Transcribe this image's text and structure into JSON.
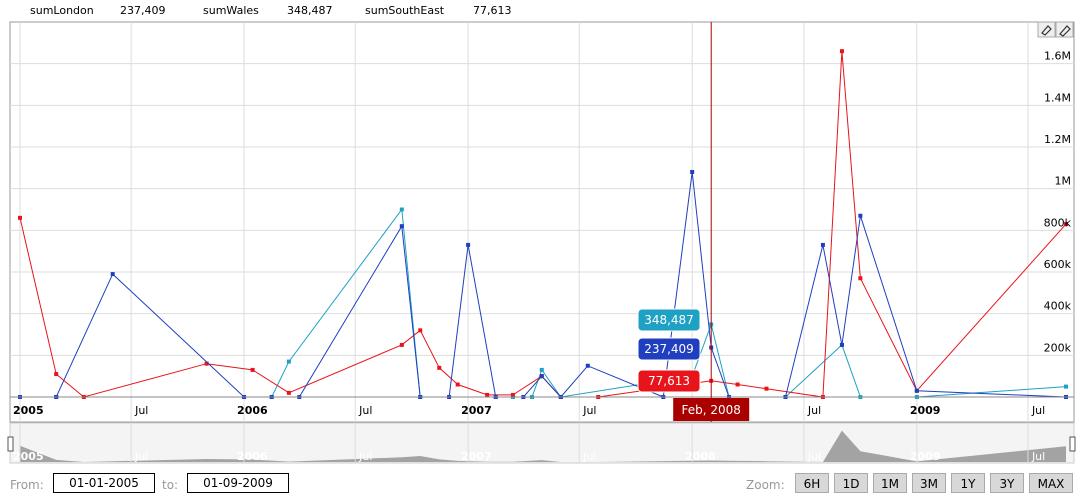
{
  "legend": [
    {
      "name": "sumLondon",
      "value": "237,409"
    },
    {
      "name": "sumWales",
      "value": "348,487"
    },
    {
      "name": "sumSouthEast",
      "value": "77,613"
    }
  ],
  "controls": {
    "from_label": "From:",
    "from_value": "01-01-2005",
    "to_label": "to:",
    "to_value": "01-09-2009",
    "zoom_label": "Zoom:",
    "zoom_buttons": [
      "6H",
      "1D",
      "1M",
      "3M",
      "1Y",
      "3Y",
      "MAX"
    ]
  },
  "colors": {
    "london": "#1f3fbf",
    "wales": "#1ea1c3",
    "southeast": "#e8141b",
    "cursor": "#aa0000"
  },
  "icons": [
    "eraser-icon",
    "pencil-icon"
  ],
  "chart_data": {
    "type": "line",
    "x_ticks": [
      {
        "x": "2005-01-01",
        "label": "2005",
        "major": true
      },
      {
        "x": "2005-07-01",
        "label": "Jul",
        "major": false
      },
      {
        "x": "2006-01-01",
        "label": "2006",
        "major": true
      },
      {
        "x": "2006-07-01",
        "label": "Jul",
        "major": false
      },
      {
        "x": "2007-01-01",
        "label": "2007",
        "major": true
      },
      {
        "x": "2007-07-01",
        "label": "Jul",
        "major": false
      },
      {
        "x": "2008-01-01",
        "label": "2008",
        "major": true
      },
      {
        "x": "2008-07-01",
        "label": "Jul",
        "major": false
      },
      {
        "x": "2009-01-01",
        "label": "2009",
        "major": true
      },
      {
        "x": "2009-07-01",
        "label": "Jul",
        "major": false
      }
    ],
    "y_ticks": [
      {
        "value": 200000,
        "label": "200k"
      },
      {
        "value": 400000,
        "label": "400k"
      },
      {
        "value": 600000,
        "label": "600k"
      },
      {
        "value": 800000,
        "label": "800k"
      },
      {
        "value": 1000000,
        "label": "1M"
      },
      {
        "value": 1200000,
        "label": "1.2M"
      },
      {
        "value": 1400000,
        "label": "1.4M"
      },
      {
        "value": 1600000,
        "label": "1.6M"
      }
    ],
    "xlim": [
      "2005-01-01",
      "2009-09-01"
    ],
    "ylim": [
      0,
      1800000
    ],
    "grid": true,
    "cursor": {
      "x": "2008-02-01",
      "label": "Feb, 2008"
    },
    "series": [
      {
        "name": "sumLondon",
        "points": [
          [
            "2005-01-01",
            0
          ],
          [
            "2005-03-01",
            0
          ],
          [
            "2005-06-01",
            590000
          ],
          [
            "2006-01-01",
            0
          ],
          [
            "2006-02-15",
            0
          ],
          [
            "2006-04-01",
            0
          ],
          [
            "2006-09-15",
            820000
          ],
          [
            "2006-10-15",
            0
          ],
          [
            "2006-12-01",
            0
          ],
          [
            "2007-01-01",
            730000
          ],
          [
            "2007-02-15",
            0
          ],
          [
            "2007-04-01",
            0
          ],
          [
            "2007-05-01",
            100000
          ],
          [
            "2007-06-01",
            0
          ],
          [
            "2007-07-15",
            150000
          ],
          [
            "2007-11-15",
            0
          ],
          [
            "2008-01-01",
            1080000
          ],
          [
            "2008-02-01",
            237409
          ],
          [
            "2008-03-01",
            0
          ],
          [
            "2008-06-01",
            0
          ],
          [
            "2008-08-01",
            730000
          ],
          [
            "2008-09-01",
            250000
          ],
          [
            "2008-10-01",
            870000
          ],
          [
            "2009-01-01",
            30000
          ],
          [
            "2009-09-01",
            0
          ]
        ]
      },
      {
        "name": "sumWales",
        "points": [
          [
            "2005-01-01",
            0
          ],
          [
            "2005-03-01",
            0
          ],
          [
            "2006-01-01",
            0
          ],
          [
            "2006-02-15",
            0
          ],
          [
            "2006-03-15",
            170000
          ],
          [
            "2006-09-15",
            900000
          ],
          [
            "2006-10-15",
            0
          ],
          [
            "2007-02-15",
            0
          ],
          [
            "2007-03-15",
            0
          ],
          [
            "2007-04-15",
            0
          ],
          [
            "2007-05-01",
            130000
          ],
          [
            "2007-06-01",
            0
          ],
          [
            "2008-01-01",
            100000
          ],
          [
            "2008-02-01",
            348487
          ],
          [
            "2008-03-01",
            0
          ],
          [
            "2008-06-01",
            0
          ],
          [
            "2008-09-01",
            250000
          ],
          [
            "2008-10-01",
            0
          ],
          [
            "2009-01-01",
            0
          ],
          [
            "2009-09-01",
            50000
          ]
        ]
      },
      {
        "name": "sumSouthEast",
        "points": [
          [
            "2005-01-01",
            860000
          ],
          [
            "2005-03-01",
            110000
          ],
          [
            "2005-04-15",
            0
          ],
          [
            "2005-11-01",
            160000
          ],
          [
            "2006-01-15",
            130000
          ],
          [
            "2006-03-15",
            20000
          ],
          [
            "2006-09-15",
            250000
          ],
          [
            "2006-10-15",
            320000
          ],
          [
            "2006-11-15",
            140000
          ],
          [
            "2006-12-15",
            60000
          ],
          [
            "2007-02-01",
            10000
          ],
          [
            "2007-03-15",
            10000
          ],
          [
            "2007-05-01",
            100000
          ],
          [
            "2007-06-01",
            0
          ],
          [
            "2007-08-01",
            0
          ],
          [
            "2008-02-01",
            77613
          ],
          [
            "2008-03-15",
            60000
          ],
          [
            "2008-05-01",
            40000
          ],
          [
            "2008-08-01",
            0
          ],
          [
            "2008-09-01",
            1660000
          ],
          [
            "2008-10-01",
            570000
          ],
          [
            "2009-01-01",
            30000
          ],
          [
            "2009-09-01",
            830000
          ]
        ]
      }
    ]
  },
  "navigator": {
    "labels": [
      {
        "x": "2005-01-01",
        "label": "2005",
        "major": true
      },
      {
        "x": "2005-07-01",
        "label": "Jul",
        "major": false
      },
      {
        "x": "2006-01-01",
        "label": "2006",
        "major": true
      },
      {
        "x": "2006-07-01",
        "label": "Jul",
        "major": false
      },
      {
        "x": "2007-01-01",
        "label": "2007",
        "major": true
      },
      {
        "x": "2007-07-01",
        "label": "Jul",
        "major": false
      },
      {
        "x": "2008-01-01",
        "label": "2008",
        "major": true
      },
      {
        "x": "2008-07-01",
        "label": "Jul",
        "major": false
      },
      {
        "x": "2009-01-01",
        "label": "2009",
        "major": true
      },
      {
        "x": "2009-07-01",
        "label": "Jul",
        "major": false
      }
    ]
  }
}
